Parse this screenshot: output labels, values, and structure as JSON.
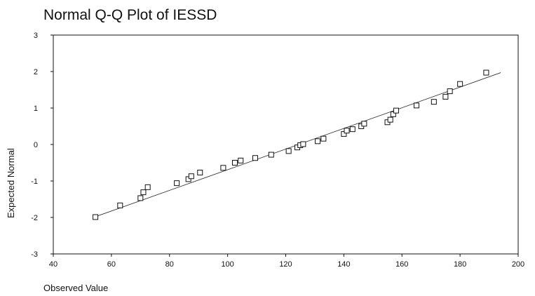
{
  "chart_data": {
    "type": "scatter",
    "title": "Normal Q-Q Plot of IESSD",
    "xlabel": "Observed Value",
    "ylabel": "Expected Normal",
    "xlim": [
      40,
      200
    ],
    "ylim": [
      -3,
      3
    ],
    "xticks": [
      40,
      60,
      80,
      100,
      120,
      140,
      160,
      180,
      200
    ],
    "yticks": [
      -3,
      -2,
      -1,
      0,
      1,
      2,
      3
    ],
    "grid": false,
    "marker": "square",
    "reference_line": {
      "x": [
        54.5,
        194
      ],
      "y": [
        -1.98,
        1.97
      ]
    },
    "points": [
      {
        "x": 54.5,
        "y": -1.99
      },
      {
        "x": 63,
        "y": -1.67
      },
      {
        "x": 70,
        "y": -1.47
      },
      {
        "x": 71,
        "y": -1.31
      },
      {
        "x": 72.5,
        "y": -1.17
      },
      {
        "x": 82.5,
        "y": -1.06
      },
      {
        "x": 86.5,
        "y": -0.95
      },
      {
        "x": 87.5,
        "y": -0.87
      },
      {
        "x": 90.5,
        "y": -0.77
      },
      {
        "x": 98.5,
        "y": -0.64
      },
      {
        "x": 102.5,
        "y": -0.5
      },
      {
        "x": 104.5,
        "y": -0.44
      },
      {
        "x": 109.5,
        "y": -0.37
      },
      {
        "x": 115,
        "y": -0.28
      },
      {
        "x": 121,
        "y": -0.18
      },
      {
        "x": 124,
        "y": -0.08
      },
      {
        "x": 125,
        "y": -0.02
      },
      {
        "x": 126,
        "y": 0.01
      },
      {
        "x": 131,
        "y": 0.09
      },
      {
        "x": 133,
        "y": 0.16
      },
      {
        "x": 140,
        "y": 0.29
      },
      {
        "x": 141,
        "y": 0.38
      },
      {
        "x": 143,
        "y": 0.42
      },
      {
        "x": 146,
        "y": 0.5
      },
      {
        "x": 147,
        "y": 0.57
      },
      {
        "x": 155,
        "y": 0.61
      },
      {
        "x": 156,
        "y": 0.68
      },
      {
        "x": 157,
        "y": 0.83
      },
      {
        "x": 158,
        "y": 0.93
      },
      {
        "x": 165,
        "y": 1.07
      },
      {
        "x": 171,
        "y": 1.17
      },
      {
        "x": 175,
        "y": 1.31
      },
      {
        "x": 176.5,
        "y": 1.46
      },
      {
        "x": 180,
        "y": 1.66
      },
      {
        "x": 189,
        "y": 1.97
      }
    ]
  }
}
